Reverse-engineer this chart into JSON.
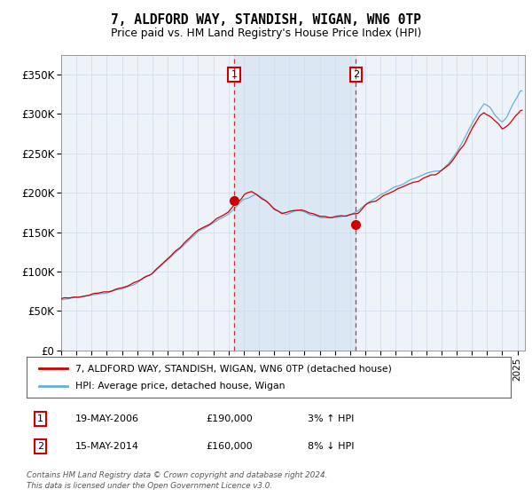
{
  "title": "7, ALDFORD WAY, STANDISH, WIGAN, WN6 0TP",
  "subtitle": "Price paid vs. HM Land Registry's House Price Index (HPI)",
  "ylabel_ticks": [
    "£0",
    "£50K",
    "£100K",
    "£150K",
    "£200K",
    "£250K",
    "£300K",
    "£350K"
  ],
  "ytick_values": [
    0,
    50000,
    100000,
    150000,
    200000,
    250000,
    300000,
    350000
  ],
  "ylim": [
    0,
    375000
  ],
  "xlim_start": 1995.0,
  "xlim_end": 2025.5,
  "hpi_color": "#6aaed6",
  "price_color": "#cc0000",
  "sale1_x": 2006.37,
  "sale1_y": 190000,
  "sale2_x": 2014.37,
  "sale2_y": 160000,
  "shade_color": "#cce0f0",
  "legend_label1": "7, ALDFORD WAY, STANDISH, WIGAN, WN6 0TP (detached house)",
  "legend_label2": "HPI: Average price, detached house, Wigan",
  "ann1_label": "1",
  "ann1_date": "19-MAY-2006",
  "ann1_price": "£190,000",
  "ann1_hpi": "3% ↑ HPI",
  "ann2_label": "2",
  "ann2_date": "15-MAY-2014",
  "ann2_price": "£160,000",
  "ann2_hpi": "8% ↓ HPI",
  "footer": "Contains HM Land Registry data © Crown copyright and database right 2024.\nThis data is licensed under the Open Government Licence v3.0.",
  "grid_color": "#d0d8e8",
  "plot_bg": "#eef3fa"
}
